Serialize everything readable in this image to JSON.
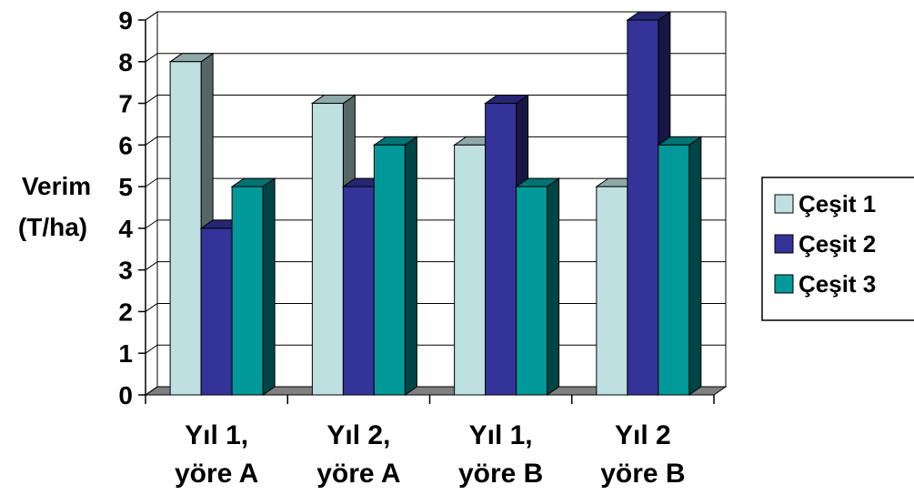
{
  "chart_data": {
    "type": "bar",
    "categories": [
      [
        "Yıl 1,",
        "yöre A"
      ],
      [
        "Yıl 2,",
        "yöre A"
      ],
      [
        "Yıl 1,",
        "yöre B"
      ],
      [
        "Yıl 2",
        "yöre B"
      ]
    ],
    "series": [
      {
        "name": "Çeşit 1",
        "values": [
          8,
          7,
          6,
          5
        ],
        "color": "#bfe0e0"
      },
      {
        "name": "Çeşit 2",
        "values": [
          4,
          5,
          7,
          9
        ],
        "color": "#333399"
      },
      {
        "name": "Çeşit 3",
        "values": [
          5,
          6,
          5,
          6
        ],
        "color": "#009999"
      }
    ],
    "title": "",
    "xlabel": "",
    "ylabel": [
      "Verim",
      "(T/ha)"
    ],
    "ylim": [
      0,
      9
    ],
    "yticks": [
      "0",
      "1",
      "2",
      "3",
      "4",
      "5",
      "6",
      "7",
      "8",
      "9"
    ],
    "grid": true,
    "legend_position": "right",
    "three_d": true
  }
}
